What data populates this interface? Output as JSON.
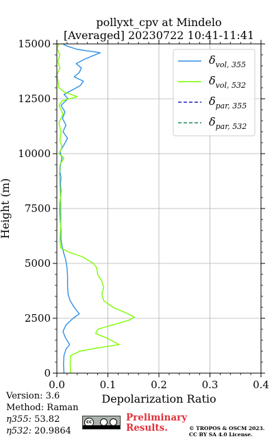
{
  "chart_data": {
    "type": "line",
    "title_line1": "pollyxt_cpv at Mindelo",
    "title_line2": "[Averaged] 20230722 10:41-11:41",
    "xlabel": "Depolarization Ratio",
    "ylabel": "Height (m)",
    "xlim": [
      0,
      0.4
    ],
    "ylim": [
      0,
      15000
    ],
    "x_ticks": [
      "0.0",
      "0.1",
      "0.2",
      "0.3",
      "0.4"
    ],
    "y_ticks": [
      "0",
      "2500",
      "5000",
      "7500",
      "10000",
      "12500",
      "15000"
    ],
    "grid": true,
    "legend_position": "top-right",
    "legend": [
      {
        "base": "δ",
        "sub": "vol, 355",
        "color": "#2e8ee6",
        "style": "solid"
      },
      {
        "base": "δ",
        "sub": "vol, 532",
        "color": "#7cfc00",
        "style": "solid"
      },
      {
        "base": "δ",
        "sub": "par, 355",
        "color": "#1b22b8",
        "style": "dashed"
      },
      {
        "base": "δ",
        "sub": "par, 532",
        "color": "#168a52",
        "style": "dashed"
      }
    ],
    "series": [
      {
        "name": "δvol,355",
        "color": "#2e8ee6",
        "points": [
          [
            0.014,
            0
          ],
          [
            0.013,
            400
          ],
          [
            0.014,
            800
          ],
          [
            0.018,
            1100
          ],
          [
            0.025,
            1300
          ],
          [
            0.017,
            1600
          ],
          [
            0.012,
            1900
          ],
          [
            0.018,
            2200
          ],
          [
            0.032,
            2500
          ],
          [
            0.044,
            2700
          ],
          [
            0.034,
            3000
          ],
          [
            0.026,
            3300
          ],
          [
            0.022,
            3600
          ],
          [
            0.021,
            4000
          ],
          [
            0.021,
            4400
          ],
          [
            0.02,
            4800
          ],
          [
            0.017,
            5200
          ],
          [
            0.013,
            5500
          ],
          [
            0.01,
            5800
          ],
          [
            0.008,
            6100
          ],
          [
            0.008,
            6500
          ],
          [
            0.007,
            6900
          ],
          [
            0.006,
            7300
          ],
          [
            0.006,
            7700
          ],
          [
            0.007,
            8000
          ],
          [
            0.008,
            8300
          ],
          [
            0.007,
            8600
          ],
          [
            0.008,
            8900
          ],
          [
            0.006,
            9200
          ],
          [
            0.007,
            9500
          ],
          [
            0.01,
            9800
          ],
          [
            0.006,
            10100
          ],
          [
            0.014,
            10400
          ],
          [
            0.021,
            10700
          ],
          [
            0.012,
            11000
          ],
          [
            0.018,
            11300
          ],
          [
            0.011,
            11600
          ],
          [
            0.016,
            11900
          ],
          [
            0.008,
            12200
          ],
          [
            0.022,
            12500
          ],
          [
            0.014,
            12700
          ],
          [
            0.03,
            12900
          ],
          [
            0.046,
            13100
          ],
          [
            0.052,
            13300
          ],
          [
            0.034,
            13500
          ],
          [
            0.044,
            13700
          ],
          [
            0.048,
            13900
          ],
          [
            0.038,
            14100
          ],
          [
            0.054,
            14300
          ],
          [
            0.085,
            14600
          ],
          [
            0.04,
            14750
          ],
          [
            0.02,
            14900
          ],
          [
            0.012,
            15000
          ]
        ]
      },
      {
        "name": "δvol,532",
        "color": "#7cfc00",
        "points": [
          [
            0.027,
            0
          ],
          [
            0.026,
            400
          ],
          [
            0.027,
            800
          ],
          [
            0.045,
            1000
          ],
          [
            0.08,
            1150
          ],
          [
            0.122,
            1300
          ],
          [
            0.098,
            1600
          ],
          [
            0.076,
            1800
          ],
          [
            0.08,
            2000
          ],
          [
            0.11,
            2200
          ],
          [
            0.14,
            2400
          ],
          [
            0.152,
            2550
          ],
          [
            0.135,
            2750
          ],
          [
            0.11,
            3000
          ],
          [
            0.092,
            3300
          ],
          [
            0.088,
            3600
          ],
          [
            0.092,
            3900
          ],
          [
            0.088,
            4200
          ],
          [
            0.08,
            4500
          ],
          [
            0.078,
            4800
          ],
          [
            0.072,
            5000
          ],
          [
            0.05,
            5300
          ],
          [
            0.025,
            5500
          ],
          [
            0.008,
            5700
          ],
          [
            0.006,
            6000
          ],
          [
            0.007,
            6500
          ],
          [
            0.008,
            7000
          ],
          [
            0.008,
            7500
          ],
          [
            0.007,
            8000
          ],
          [
            0.006,
            8500
          ],
          [
            0.005,
            9000
          ],
          [
            0.006,
            9500
          ],
          [
            0.014,
            9800
          ],
          [
            0.004,
            10000
          ],
          [
            0.01,
            10300
          ],
          [
            0.006,
            10600
          ],
          [
            0.008,
            11000
          ],
          [
            0.004,
            11400
          ],
          [
            0.012,
            11800
          ],
          [
            0.004,
            12200
          ],
          [
            0.01,
            12400
          ],
          [
            0.04,
            12600
          ],
          [
            0.015,
            12800
          ],
          [
            0.004,
            13000
          ],
          [
            0.002,
            13300
          ],
          [
            0.0,
            13600
          ],
          [
            0.006,
            13900
          ],
          [
            0.002,
            14200
          ],
          [
            0.006,
            14500
          ],
          [
            0.0,
            14800
          ],
          [
            0.004,
            15000
          ]
        ]
      }
    ]
  },
  "footer": {
    "version": "Version: 3.6",
    "method": "Method: Raman",
    "eta355_label": "η355:",
    "eta355_value": "53.82",
    "eta532_label": "η532:",
    "eta532_value": "20.9864",
    "license_badge": "CC BY SA",
    "preliminary_line1": "Preliminary",
    "preliminary_line2": "Results.",
    "copyright_line1": "© TROPOS & OSCM 2023.",
    "copyright_line2": "CC BY SA 4.0 License."
  }
}
